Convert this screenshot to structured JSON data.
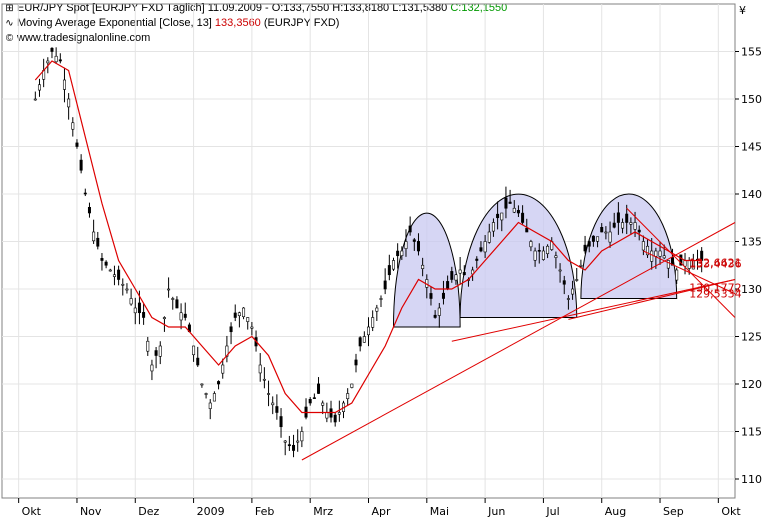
{
  "header": {
    "line1_prefix": "EUR/JPY Spot [EURJPY FXD  Täglich] 11.09.2009 - O:133,7550 H:133,8180 L:131,5380 ",
    "line1_close": "C:132,1550",
    "line2_prefix": "Moving Average Exponential [Close, 13] ",
    "line2_value": "133,3560",
    "line2_suffix": " (EURJPY FXD)",
    "line3": "www.tradesignalonline.com",
    "currency_symbol": "¥"
  },
  "colors": {
    "price_bars": "#000000",
    "ema_line": "#dd0000",
    "trend_lines": "#e00000",
    "pattern_fill": "#c8c8f0",
    "grid": "#e4e4e4",
    "close_label": "#009900"
  },
  "chart_data": {
    "type": "candlestick",
    "symbol": "EUR/JPY Spot",
    "ylim": [
      108,
      160
    ],
    "y_ticks": [
      110,
      115,
      120,
      125,
      130,
      135,
      140,
      145,
      150,
      155
    ],
    "x_months": [
      "Okt",
      "Nov",
      "Dez",
      "2009",
      "Feb",
      "Mrz",
      "Apr",
      "Mai",
      "Jun",
      "Jul",
      "Aug",
      "Sep",
      "Okt"
    ],
    "price_path": [
      [
        0,
        150
      ],
      [
        2,
        153
      ],
      [
        4,
        155
      ],
      [
        6,
        154
      ],
      [
        8,
        150
      ],
      [
        10,
        145
      ],
      [
        12,
        140
      ],
      [
        14,
        136
      ],
      [
        16,
        133
      ],
      [
        18,
        132
      ],
      [
        20,
        131
      ],
      [
        22,
        130
      ],
      [
        24,
        128
      ],
      [
        26,
        127
      ],
      [
        28,
        122
      ],
      [
        30,
        124
      ],
      [
        32,
        130
      ],
      [
        34,
        128
      ],
      [
        36,
        127
      ],
      [
        38,
        124
      ],
      [
        40,
        120
      ],
      [
        42,
        118
      ],
      [
        44,
        120
      ],
      [
        46,
        124
      ],
      [
        48,
        127
      ],
      [
        50,
        128
      ],
      [
        52,
        126
      ],
      [
        54,
        122
      ],
      [
        56,
        119
      ],
      [
        58,
        117
      ],
      [
        60,
        114
      ],
      [
        62,
        113
      ],
      [
        64,
        115
      ],
      [
        66,
        118
      ],
      [
        68,
        119
      ],
      [
        70,
        117
      ],
      [
        72,
        116
      ],
      [
        74,
        118
      ],
      [
        76,
        120
      ],
      [
        78,
        124
      ],
      [
        80,
        126
      ],
      [
        82,
        128
      ],
      [
        84,
        130
      ],
      [
        86,
        133
      ],
      [
        88,
        134
      ],
      [
        90,
        136
      ],
      [
        92,
        134
      ],
      [
        94,
        131
      ],
      [
        96,
        127
      ],
      [
        98,
        129
      ],
      [
        100,
        131
      ],
      [
        102,
        132
      ],
      [
        104,
        131
      ],
      [
        106,
        133
      ],
      [
        108,
        135
      ],
      [
        110,
        137
      ],
      [
        112,
        138
      ],
      [
        114,
        139
      ],
      [
        116,
        138
      ],
      [
        118,
        136
      ],
      [
        120,
        134
      ],
      [
        122,
        134
      ],
      [
        124,
        135
      ],
      [
        126,
        132
      ],
      [
        128,
        129
      ],
      [
        130,
        131
      ],
      [
        132,
        134
      ],
      [
        134,
        135
      ],
      [
        136,
        136
      ],
      [
        138,
        136
      ],
      [
        140,
        137
      ],
      [
        142,
        137
      ],
      [
        144,
        137
      ],
      [
        146,
        135
      ],
      [
        148,
        134
      ],
      [
        150,
        134
      ],
      [
        152,
        133
      ],
      [
        154,
        132
      ],
      [
        156,
        133
      ],
      [
        158,
        133
      ],
      [
        160,
        133
      ]
    ],
    "ema": {
      "name": "Moving Average Exponential [Close, 13]",
      "values": [
        [
          0,
          152
        ],
        [
          4,
          154
        ],
        [
          8,
          153
        ],
        [
          12,
          146
        ],
        [
          16,
          139
        ],
        [
          20,
          133
        ],
        [
          24,
          130
        ],
        [
          28,
          127
        ],
        [
          32,
          126
        ],
        [
          36,
          126
        ],
        [
          40,
          124
        ],
        [
          44,
          122
        ],
        [
          48,
          124
        ],
        [
          52,
          125
        ],
        [
          56,
          123
        ],
        [
          60,
          119
        ],
        [
          64,
          117
        ],
        [
          68,
          117
        ],
        [
          72,
          117
        ],
        [
          76,
          118
        ],
        [
          80,
          121
        ],
        [
          84,
          124
        ],
        [
          88,
          128
        ],
        [
          92,
          131
        ],
        [
          96,
          130
        ],
        [
          100,
          130
        ],
        [
          104,
          131
        ],
        [
          108,
          133
        ],
        [
          112,
          135
        ],
        [
          116,
          137
        ],
        [
          120,
          136
        ],
        [
          124,
          135
        ],
        [
          128,
          133
        ],
        [
          132,
          132
        ],
        [
          136,
          134
        ],
        [
          140,
          135
        ],
        [
          144,
          136
        ],
        [
          148,
          135
        ],
        [
          152,
          134
        ],
        [
          156,
          133
        ],
        [
          160,
          133
        ]
      ]
    },
    "annotations": {
      "resistance_levels": [
        "132,6621",
        "133,4436",
        "130,1772",
        "129,5334"
      ]
    }
  }
}
